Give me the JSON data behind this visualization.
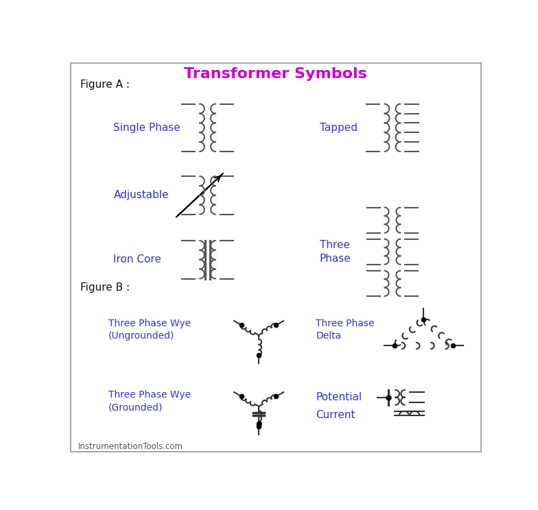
{
  "title": "Transformer Symbols",
  "title_color": "#cc00cc",
  "label_color": "#3333cc",
  "line_color": "#555555",
  "dark_color": "#333333",
  "bg_color": "#ffffff",
  "border_color": "#aaaaaa",
  "fig_width": 7.84,
  "fig_height": 7.44,
  "dpi": 100,
  "figA_label": "Figure A :",
  "figB_label": "Figure B :",
  "labels": {
    "single_phase": "Single Phase",
    "tapped": "Tapped",
    "adjustable": "Adjustable",
    "three_phase": "Three\nPhase",
    "iron_core": "Iron Core",
    "wye_ungnd": "Three Phase Wye\n(Ungrounded)",
    "wye_gnd": "Three Phase Wye\n(Grounded)",
    "delta": "Three Phase\nDelta",
    "potential": "Potential",
    "current": "Current",
    "footer": "InstrumentationTools.com"
  }
}
